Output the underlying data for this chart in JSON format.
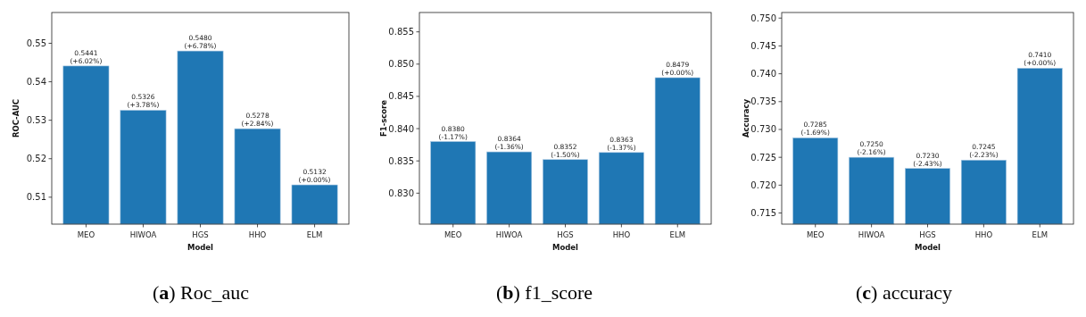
{
  "chart_data": [
    {
      "type": "bar",
      "categories": [
        "MEO",
        "HIWOA",
        "HGS",
        "HHO",
        "ELM"
      ],
      "values": [
        0.5441,
        0.5326,
        0.548,
        0.5278,
        0.5132
      ],
      "value_labels": [
        "0.5441\n(+6.02%)",
        "0.5326\n(+3.78%)",
        "0.5480\n(+6.78%)",
        "0.5278\n(+2.84%)",
        "0.5132\n(+0.00%)"
      ],
      "color": "#1f77b4",
      "xlabel": "Model",
      "ylabel": "ROC-AUC",
      "ylim": [
        0.503,
        0.558
      ],
      "yticks": [
        {
          "value": 0.51,
          "label": "0.51"
        },
        {
          "value": 0.52,
          "label": "0.52"
        },
        {
          "value": 0.53,
          "label": "0.53"
        },
        {
          "value": 0.54,
          "label": "0.54"
        },
        {
          "value": 0.55,
          "label": "0.55"
        }
      ],
      "annotations": [
        "(a) Roc_auc"
      ]
    },
    {
      "type": "bar",
      "categories": [
        "MEO",
        "HIWOA",
        "HGS",
        "HHO",
        "ELM"
      ],
      "values": [
        0.838,
        0.8364,
        0.8352,
        0.8363,
        0.8479
      ],
      "value_labels": [
        "0.8380\n(-1.17%)",
        "0.8364\n(-1.36%)",
        "0.8352\n(-1.50%)",
        "0.8363\n(-1.37%)",
        "0.8479\n(+0.00%)"
      ],
      "color": "#1f77b4",
      "xlabel": "Model",
      "ylabel": "F1-score",
      "ylim": [
        0.8252,
        0.858
      ],
      "yticks": [
        {
          "value": 0.83,
          "label": "0.830"
        },
        {
          "value": 0.835,
          "label": "0.835"
        },
        {
          "value": 0.84,
          "label": "0.840"
        },
        {
          "value": 0.845,
          "label": "0.845"
        },
        {
          "value": 0.85,
          "label": "0.850"
        },
        {
          "value": 0.855,
          "label": "0.855"
        }
      ],
      "annotations": [
        "(b) f1_score"
      ]
    },
    {
      "type": "bar",
      "categories": [
        "MEO",
        "HIWOA",
        "HGS",
        "HHO",
        "ELM"
      ],
      "values": [
        0.7285,
        0.725,
        0.723,
        0.7245,
        0.741
      ],
      "value_labels": [
        "0.7285\n(-1.69%)",
        "0.7250\n(-2.16%)",
        "0.7230\n(-2.43%)",
        "0.7245\n(-2.23%)",
        "0.7410\n(+0.00%)"
      ],
      "color": "#1f77b4",
      "xlabel": "Model",
      "ylabel": "Accuracy",
      "ylim": [
        0.713,
        0.751
      ],
      "yticks": [
        {
          "value": 0.715,
          "label": "0.715"
        },
        {
          "value": 0.72,
          "label": "0.720"
        },
        {
          "value": 0.725,
          "label": "0.725"
        },
        {
          "value": 0.73,
          "label": "0.730"
        },
        {
          "value": 0.735,
          "label": "0.735"
        },
        {
          "value": 0.74,
          "label": "0.740"
        },
        {
          "value": 0.745,
          "label": "0.745"
        },
        {
          "value": 0.75,
          "label": "0.750"
        }
      ],
      "annotations": [
        "(c) accuracy"
      ]
    }
  ]
}
